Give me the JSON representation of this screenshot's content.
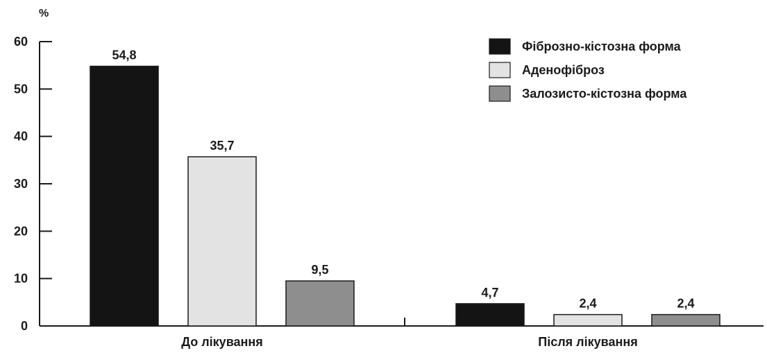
{
  "chart_data": {
    "type": "bar",
    "unit": "%",
    "categories": [
      "До лікування",
      "Після лікування"
    ],
    "series": [
      {
        "name": "Фіброзно-кістозна форма",
        "color": "#141414",
        "values": [
          54.8,
          4.7
        ],
        "labels": [
          "54,8",
          "4,7"
        ]
      },
      {
        "name": "Аденофіброз",
        "color": "#e3e3e3",
        "values": [
          35.7,
          2.4
        ],
        "labels": [
          "35,7",
          "2,4"
        ]
      },
      {
        "name": "Залозисто-кістозна форма",
        "color": "#8e8e8e",
        "values": [
          9.5,
          2.4
        ],
        "labels": [
          "9,5",
          "2,4"
        ]
      }
    ],
    "ylim": [
      0,
      60
    ],
    "yticks": [
      "0",
      "10",
      "20",
      "30",
      "40",
      "50",
      "60"
    ],
    "legend_position": "top-right",
    "grid": false
  }
}
